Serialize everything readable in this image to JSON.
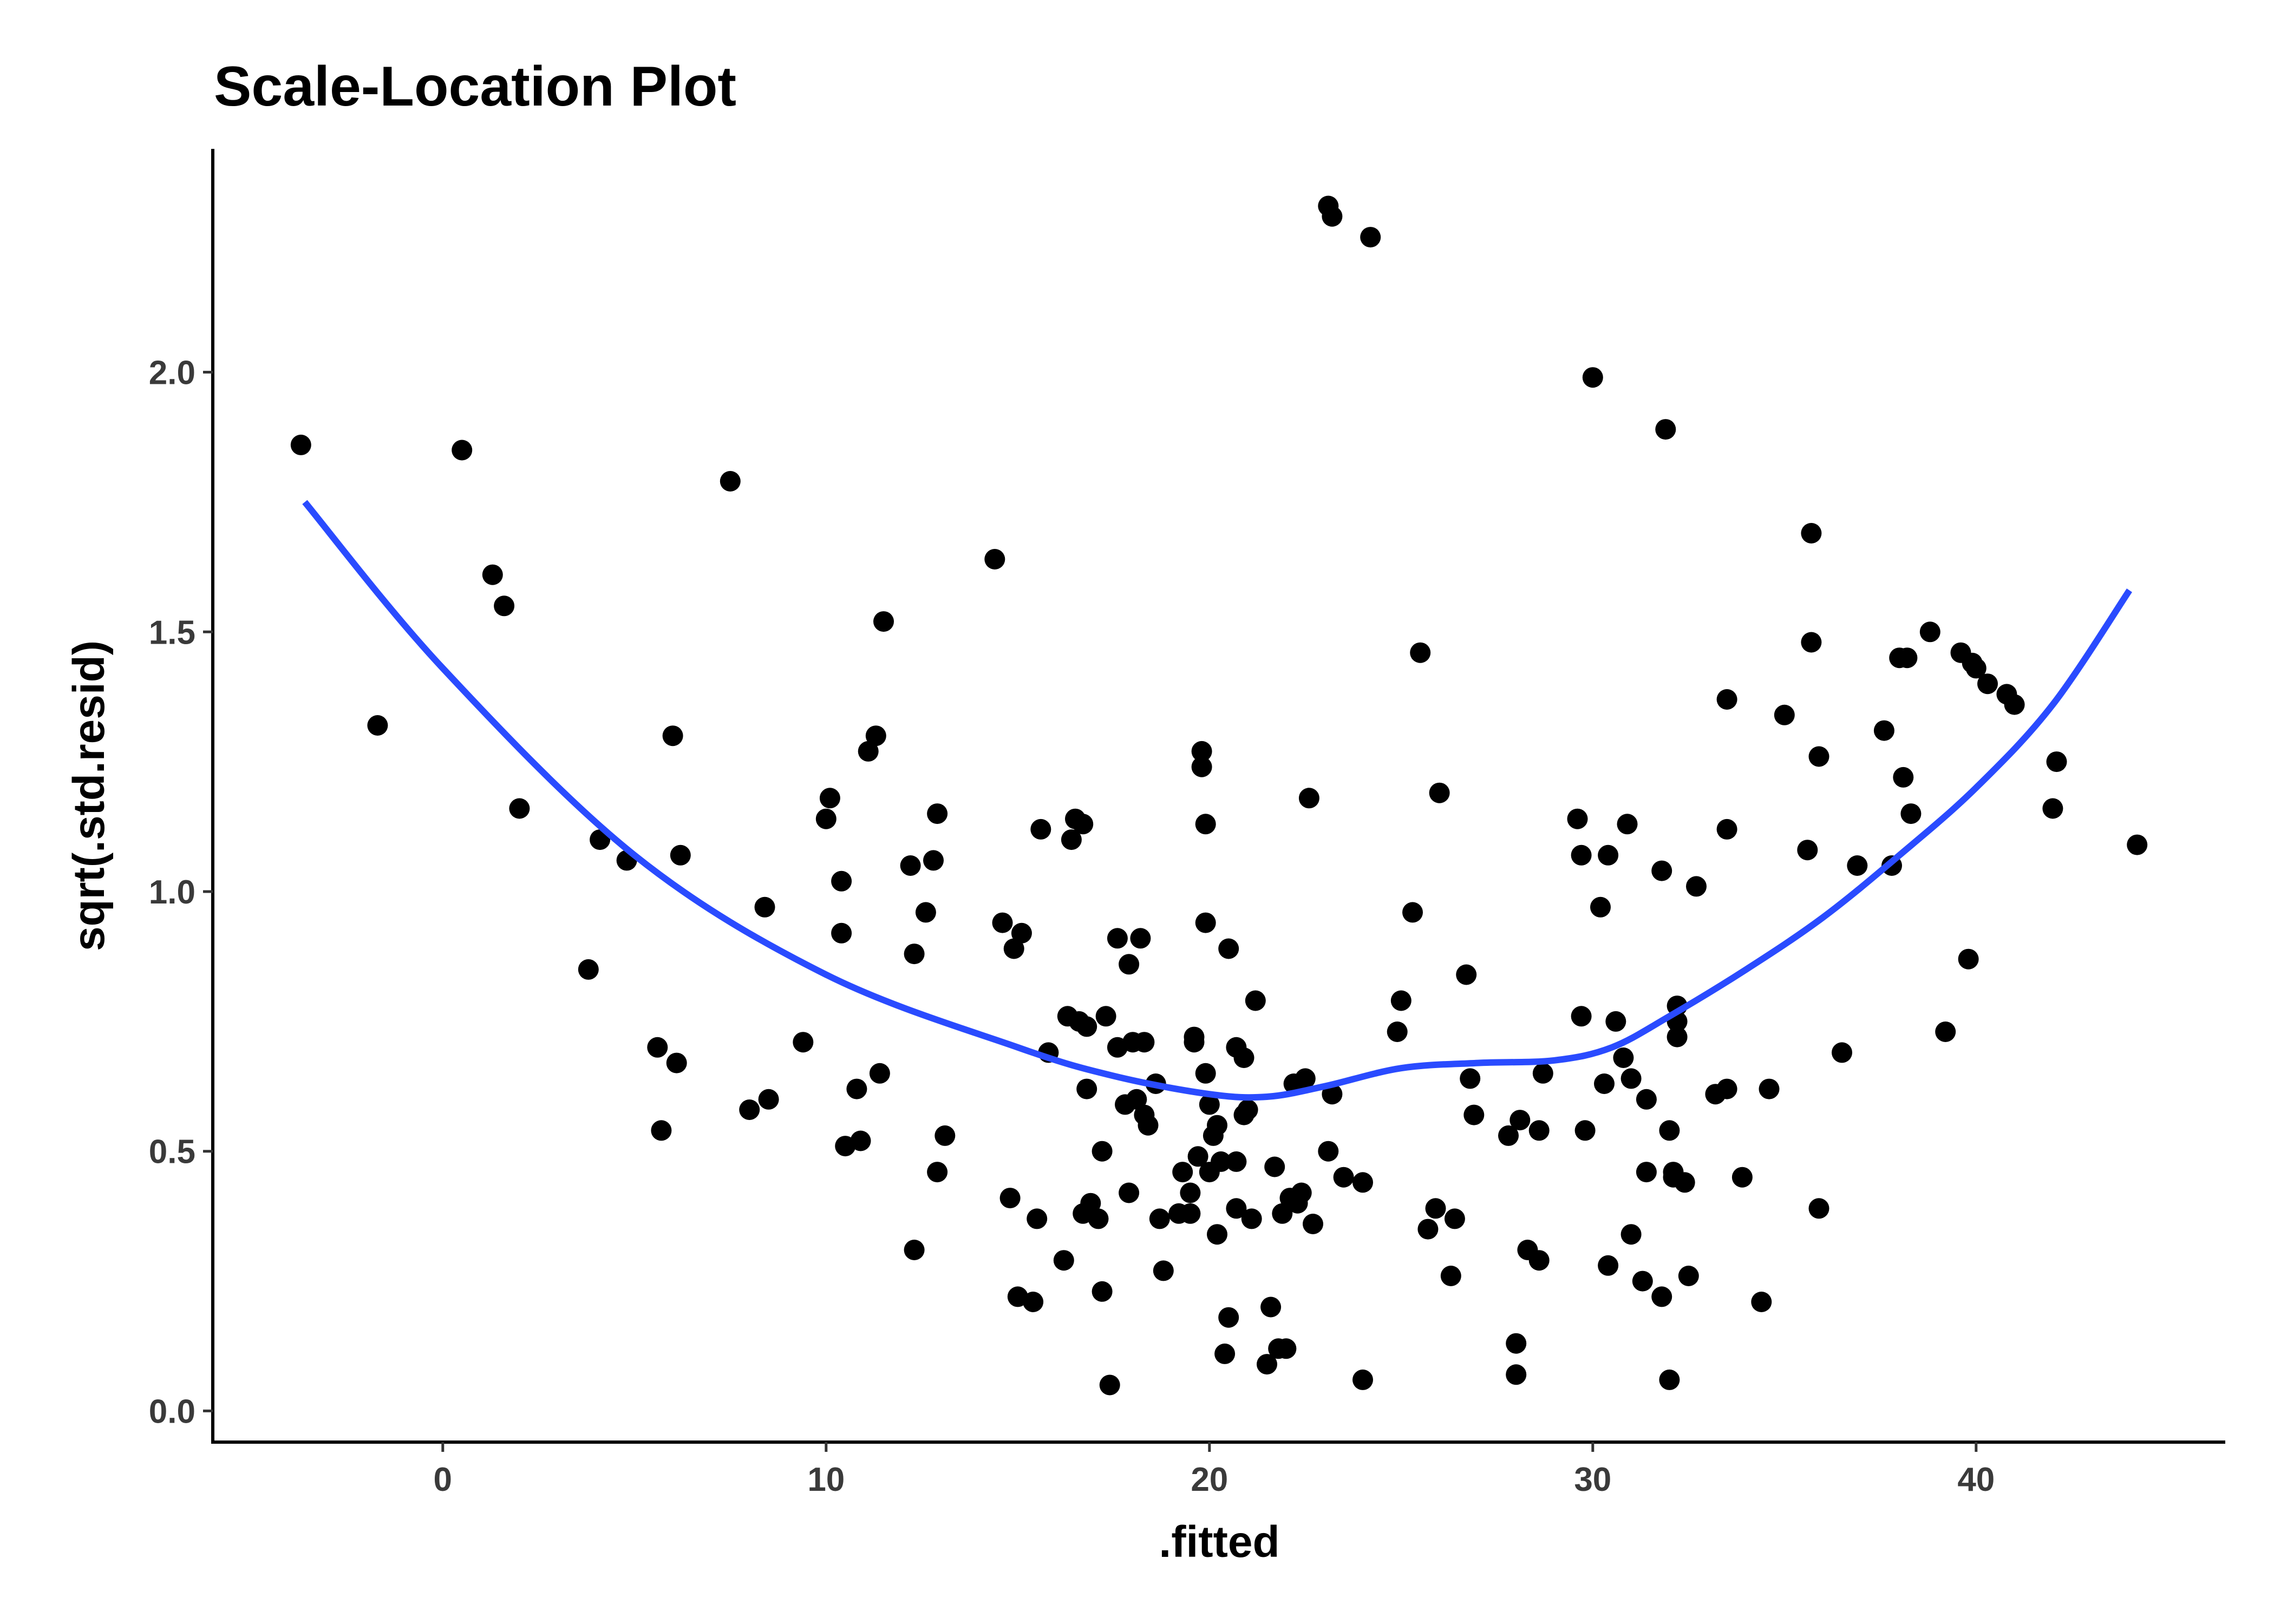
{
  "chart_data": {
    "type": "scatter",
    "title": "Scale-Location Plot",
    "xlabel": ".fitted",
    "ylabel": "sqrt(.std.resid)",
    "xlim": [
      -6,
      46.5
    ],
    "ylim": [
      -0.06,
      2.43
    ],
    "xticks": [
      0,
      10,
      20,
      30,
      40
    ],
    "xtick_labels": [
      "0",
      "10",
      "20",
      "30",
      "40"
    ],
    "yticks": [
      0.0,
      0.5,
      1.0,
      1.5,
      2.0
    ],
    "ytick_labels": [
      "0.0",
      "0.5",
      "1.0",
      "1.5",
      "2.0"
    ],
    "grid": false,
    "colors": {
      "points": "#000000",
      "smooth": "#2a4bff",
      "axis": "#000000"
    },
    "points": [
      [
        -3.7,
        1.86
      ],
      [
        -1.7,
        1.32
      ],
      [
        0.5,
        1.85
      ],
      [
        1.3,
        1.61
      ],
      [
        1.6,
        1.55
      ],
      [
        2.0,
        1.16
      ],
      [
        3.8,
        0.85
      ],
      [
        4.1,
        1.1
      ],
      [
        4.8,
        1.06
      ],
      [
        5.6,
        0.7
      ],
      [
        5.7,
        0.54
      ],
      [
        6.0,
        1.3
      ],
      [
        6.1,
        0.67
      ],
      [
        6.2,
        1.07
      ],
      [
        7.5,
        1.79
      ],
      [
        8.0,
        0.58
      ],
      [
        8.4,
        0.97
      ],
      [
        8.5,
        0.6
      ],
      [
        9.4,
        0.71
      ],
      [
        10.0,
        1.14
      ],
      [
        10.1,
        1.18
      ],
      [
        10.4,
        0.92
      ],
      [
        10.4,
        1.02
      ],
      [
        10.5,
        0.51
      ],
      [
        10.8,
        0.62
      ],
      [
        10.9,
        0.52
      ],
      [
        11.1,
        1.27
      ],
      [
        11.3,
        1.3
      ],
      [
        11.4,
        0.65
      ],
      [
        11.5,
        1.52
      ],
      [
        12.2,
        1.05
      ],
      [
        12.3,
        0.88
      ],
      [
        12.3,
        0.31
      ],
      [
        12.6,
        0.96
      ],
      [
        12.8,
        1.06
      ],
      [
        12.9,
        1.15
      ],
      [
        12.9,
        0.46
      ],
      [
        13.1,
        0.53
      ],
      [
        14.4,
        1.64
      ],
      [
        14.6,
        0.94
      ],
      [
        14.8,
        0.41
      ],
      [
        14.9,
        0.89
      ],
      [
        15.0,
        0.22
      ],
      [
        15.1,
        0.92
      ],
      [
        15.4,
        0.21
      ],
      [
        15.5,
        0.37
      ],
      [
        15.6,
        1.12
      ],
      [
        15.8,
        0.69
      ],
      [
        16.2,
        0.29
      ],
      [
        16.3,
        0.76
      ],
      [
        16.4,
        1.1
      ],
      [
        16.5,
        1.14
      ],
      [
        16.6,
        0.75
      ],
      [
        16.7,
        0.38
      ],
      [
        16.7,
        1.13
      ],
      [
        16.8,
        0.74
      ],
      [
        16.8,
        0.62
      ],
      [
        16.9,
        0.4
      ],
      [
        17.1,
        0.37
      ],
      [
        17.2,
        0.5
      ],
      [
        17.2,
        0.23
      ],
      [
        17.3,
        0.76
      ],
      [
        17.4,
        0.05
      ],
      [
        17.6,
        0.7
      ],
      [
        17.6,
        0.91
      ],
      [
        17.8,
        0.59
      ],
      [
        17.9,
        0.86
      ],
      [
        17.9,
        0.42
      ],
      [
        18.0,
        0.71
      ],
      [
        18.1,
        0.6
      ],
      [
        18.2,
        0.91
      ],
      [
        18.3,
        0.57
      ],
      [
        18.3,
        0.71
      ],
      [
        18.4,
        0.55
      ],
      [
        18.6,
        0.63
      ],
      [
        18.7,
        0.37
      ],
      [
        18.8,
        0.27
      ],
      [
        19.2,
        0.38
      ],
      [
        19.3,
        0.46
      ],
      [
        19.5,
        0.38
      ],
      [
        19.5,
        0.42
      ],
      [
        19.6,
        0.71
      ],
      [
        19.6,
        0.72
      ],
      [
        19.7,
        0.49
      ],
      [
        19.8,
        1.24
      ],
      [
        19.8,
        1.27
      ],
      [
        19.9,
        1.13
      ],
      [
        19.9,
        0.94
      ],
      [
        19.9,
        0.65
      ],
      [
        20.0,
        0.46
      ],
      [
        20.0,
        0.59
      ],
      [
        20.1,
        0.53
      ],
      [
        20.2,
        0.55
      ],
      [
        20.2,
        0.34
      ],
      [
        20.3,
        0.48
      ],
      [
        20.4,
        0.11
      ],
      [
        20.5,
        0.18
      ],
      [
        20.5,
        0.89
      ],
      [
        20.7,
        0.7
      ],
      [
        20.7,
        0.48
      ],
      [
        20.7,
        0.39
      ],
      [
        20.9,
        0.68
      ],
      [
        20.9,
        0.57
      ],
      [
        21.0,
        0.58
      ],
      [
        21.1,
        0.37
      ],
      [
        21.2,
        0.79
      ],
      [
        21.5,
        0.09
      ],
      [
        21.6,
        0.2
      ],
      [
        21.7,
        0.47
      ],
      [
        21.8,
        0.12
      ],
      [
        21.9,
        0.38
      ],
      [
        22.0,
        0.12
      ],
      [
        22.1,
        0.41
      ],
      [
        22.2,
        0.63
      ],
      [
        22.3,
        0.4
      ],
      [
        22.4,
        0.42
      ],
      [
        22.5,
        0.64
      ],
      [
        22.6,
        1.18
      ],
      [
        22.7,
        0.36
      ],
      [
        23.1,
        2.32
      ],
      [
        23.1,
        0.5
      ],
      [
        23.2,
        2.3
      ],
      [
        23.2,
        0.61
      ],
      [
        23.5,
        0.45
      ],
      [
        24.0,
        0.44
      ],
      [
        24.0,
        0.06
      ],
      [
        24.2,
        2.26
      ],
      [
        24.9,
        0.73
      ],
      [
        25.0,
        0.79
      ],
      [
        25.3,
        0.96
      ],
      [
        25.5,
        1.46
      ],
      [
        25.7,
        0.35
      ],
      [
        25.9,
        0.39
      ],
      [
        26.0,
        1.19
      ],
      [
        26.3,
        0.26
      ],
      [
        26.4,
        0.37
      ],
      [
        26.7,
        0.84
      ],
      [
        26.8,
        0.64
      ],
      [
        26.9,
        0.57
      ],
      [
        27.8,
        0.53
      ],
      [
        28.0,
        0.07
      ],
      [
        28.0,
        0.13
      ],
      [
        28.1,
        0.56
      ],
      [
        28.3,
        0.31
      ],
      [
        28.6,
        0.29
      ],
      [
        28.6,
        0.54
      ],
      [
        28.7,
        0.65
      ],
      [
        29.6,
        1.14
      ],
      [
        29.7,
        0.76
      ],
      [
        29.7,
        1.07
      ],
      [
        29.8,
        0.54
      ],
      [
        30.0,
        1.99
      ],
      [
        30.2,
        0.97
      ],
      [
        30.3,
        0.63
      ],
      [
        30.4,
        0.28
      ],
      [
        30.4,
        1.07
      ],
      [
        30.6,
        0.75
      ],
      [
        30.8,
        0.68
      ],
      [
        30.9,
        1.13
      ],
      [
        31.0,
        0.64
      ],
      [
        31.0,
        0.34
      ],
      [
        31.3,
        0.25
      ],
      [
        31.4,
        0.6
      ],
      [
        31.4,
        0.46
      ],
      [
        31.8,
        1.04
      ],
      [
        31.8,
        0.22
      ],
      [
        31.9,
        1.89
      ],
      [
        32.0,
        0.06
      ],
      [
        32.0,
        0.54
      ],
      [
        32.1,
        0.45
      ],
      [
        32.1,
        0.46
      ],
      [
        32.2,
        0.78
      ],
      [
        32.2,
        0.75
      ],
      [
        32.2,
        0.72
      ],
      [
        32.4,
        0.44
      ],
      [
        32.5,
        0.26
      ],
      [
        32.7,
        1.01
      ],
      [
        33.2,
        0.61
      ],
      [
        33.5,
        1.37
      ],
      [
        33.5,
        0.62
      ],
      [
        33.5,
        1.12
      ],
      [
        33.9,
        0.45
      ],
      [
        34.4,
        0.21
      ],
      [
        34.6,
        0.62
      ],
      [
        35.0,
        1.34
      ],
      [
        35.6,
        1.08
      ],
      [
        35.7,
        1.69
      ],
      [
        35.7,
        1.48
      ],
      [
        35.9,
        1.26
      ],
      [
        35.9,
        0.39
      ],
      [
        36.5,
        0.69
      ],
      [
        36.9,
        1.05
      ],
      [
        37.6,
        1.31
      ],
      [
        37.8,
        1.05
      ],
      [
        38.0,
        1.45
      ],
      [
        38.1,
        1.22
      ],
      [
        38.2,
        1.45
      ],
      [
        38.3,
        1.15
      ],
      [
        38.8,
        1.5
      ],
      [
        39.2,
        0.73
      ],
      [
        39.6,
        1.46
      ],
      [
        39.8,
        0.87
      ],
      [
        39.9,
        1.44
      ],
      [
        40.0,
        1.43
      ],
      [
        40.3,
        1.4
      ],
      [
        40.8,
        1.38
      ],
      [
        41.0,
        1.36
      ],
      [
        42.0,
        1.16
      ],
      [
        42.1,
        1.25
      ],
      [
        44.2,
        1.09
      ]
    ],
    "smooth": [
      [
        -3.6,
        1.75
      ],
      [
        0,
        1.43
      ],
      [
        5,
        1.07
      ],
      [
        10,
        0.84
      ],
      [
        15,
        0.7
      ],
      [
        17.5,
        0.645
      ],
      [
        20,
        0.61
      ],
      [
        21.5,
        0.605
      ],
      [
        23,
        0.625
      ],
      [
        25,
        0.66
      ],
      [
        27,
        0.67
      ],
      [
        29,
        0.675
      ],
      [
        30.5,
        0.7
      ],
      [
        32,
        0.76
      ],
      [
        34,
        0.85
      ],
      [
        36,
        0.95
      ],
      [
        38,
        1.07
      ],
      [
        40,
        1.2
      ],
      [
        42,
        1.36
      ],
      [
        44,
        1.58
      ]
    ]
  }
}
